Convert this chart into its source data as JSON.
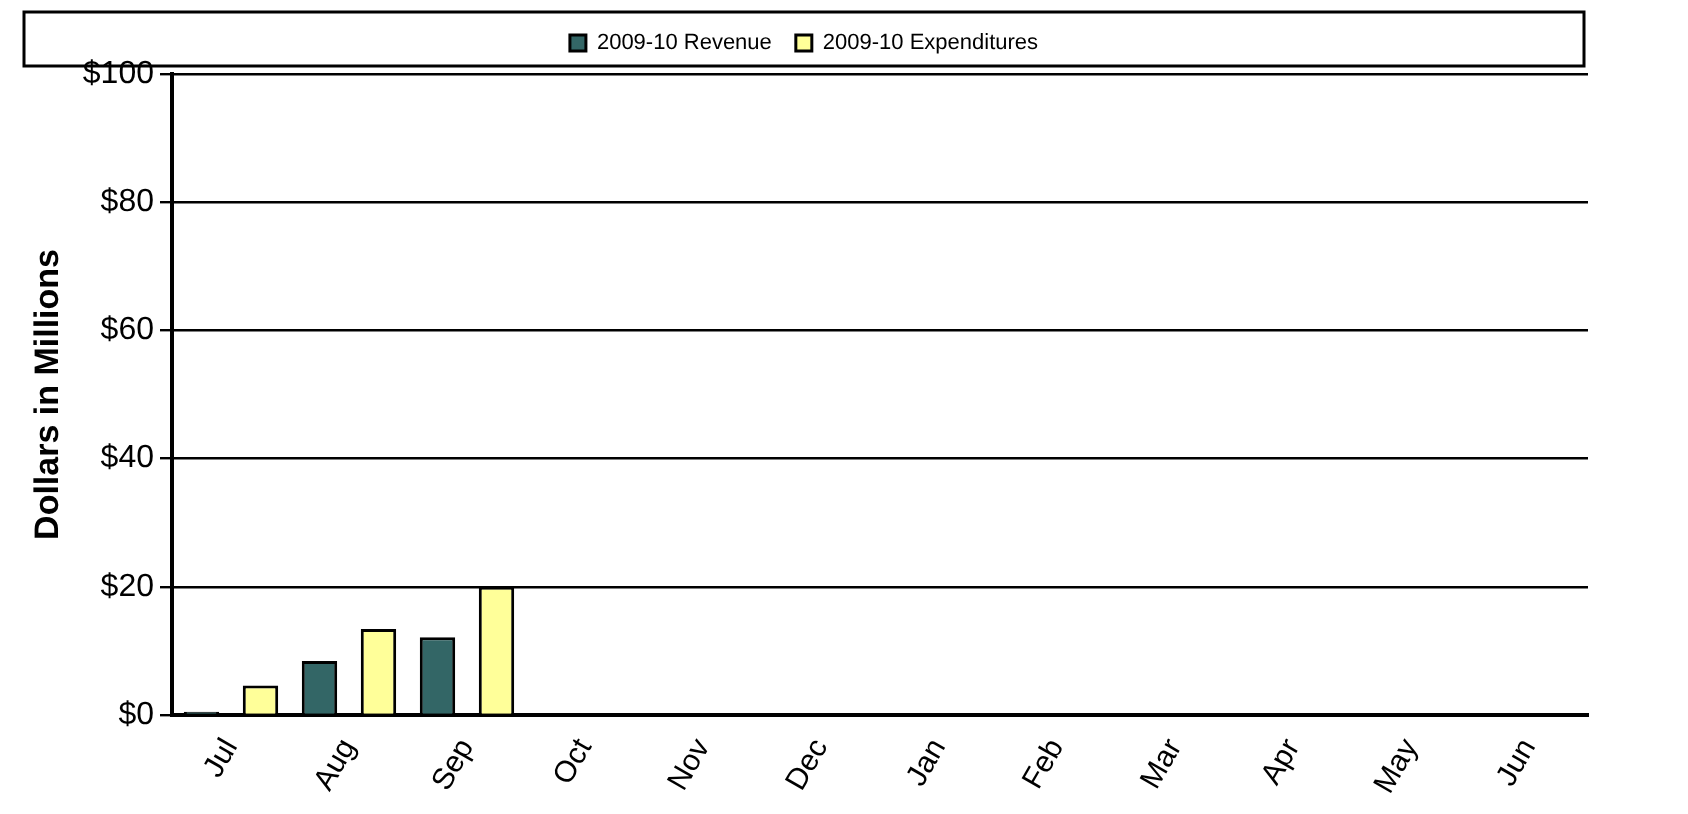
{
  "chart_data": {
    "type": "bar",
    "ylabel": "Dollars in Millions",
    "categories": [
      "Jul",
      "Aug",
      "Sep",
      "Oct",
      "Nov",
      "Dec",
      "Jan",
      "Feb",
      "Mar",
      "Apr",
      "May",
      "Jun"
    ],
    "series": [
      {
        "name": "2009-10 Revenue",
        "color": "#336666",
        "values": [
          0.5,
          8.4,
          12.1,
          null,
          null,
          null,
          null,
          null,
          null,
          null,
          null,
          null
        ]
      },
      {
        "name": "2009-10 Expenditures",
        "color": "#ffff99",
        "values": [
          4.6,
          13.4,
          20,
          null,
          null,
          null,
          null,
          null,
          null,
          null,
          null,
          null
        ]
      }
    ],
    "ylim": [
      0,
      100
    ],
    "yticks": [
      {
        "value": 0,
        "label": "$0"
      },
      {
        "value": 20,
        "label": "$20"
      },
      {
        "value": 40,
        "label": "$40"
      },
      {
        "value": 60,
        "label": "$60"
      },
      {
        "value": 80,
        "label": "$80"
      },
      {
        "value": 100,
        "label": "$100"
      }
    ],
    "grid": "y",
    "legend": "top"
  }
}
